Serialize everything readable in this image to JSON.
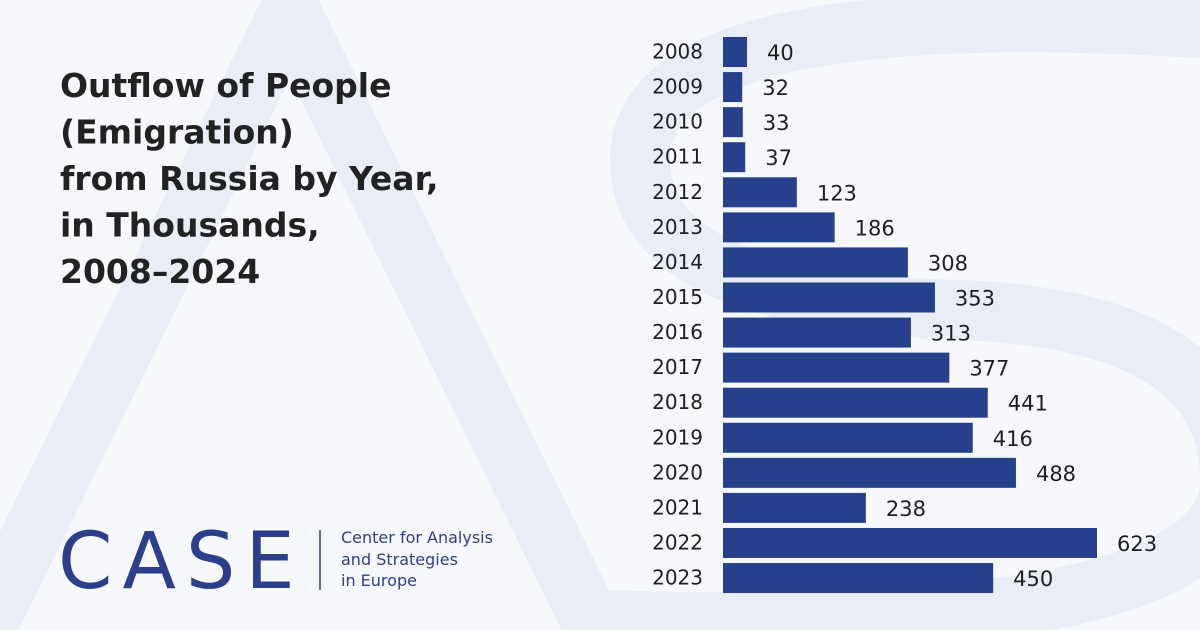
{
  "chart_data": {
    "type": "barh",
    "title": [
      "Outflow of People",
      "(Emigration)",
      "from Russia by Year,",
      "in Thousands,",
      "2008–2024"
    ],
    "categories": [
      "2008",
      "2009",
      "2010",
      "2011",
      "2012",
      "2013",
      "2014",
      "2015",
      "2016",
      "2017",
      "2018",
      "2019",
      "2020",
      "2021",
      "2022",
      "2023"
    ],
    "values": [
      40,
      32,
      33,
      37,
      123,
      186,
      308,
      353,
      313,
      377,
      441,
      416,
      488,
      238,
      623,
      450
    ],
    "color": "#26408b"
  },
  "brand": {
    "name": "CASE",
    "tagline": [
      "Center for Analysis",
      "and Strategies",
      "in Europe"
    ]
  }
}
